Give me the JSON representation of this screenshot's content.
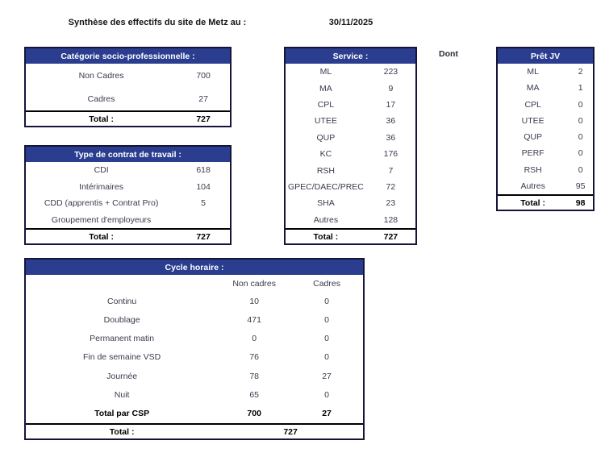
{
  "title": "Synthèse des effectifs du site de Metz au :",
  "date": "30/11/2025",
  "dont_label": "Dont",
  "colors": {
    "header_bg": "#2b3d8f",
    "header_text": "#ffffff",
    "border": "#15153a",
    "body_text": "#3b3b4f"
  },
  "tables": {
    "categorie": {
      "header": "Catégorie socio-professionnelle :",
      "rows": [
        {
          "label": "Non Cadres",
          "value": "700"
        },
        {
          "label": "Cadres",
          "value": "27"
        }
      ],
      "total_label": "Total :",
      "total_value": "727"
    },
    "contrat": {
      "header": "Type de contrat de travail :",
      "rows": [
        {
          "label": "CDI",
          "value": "618"
        },
        {
          "label": "Intérimaires",
          "value": "104"
        },
        {
          "label": "CDD (apprentis + Contrat Pro)",
          "value": "5"
        },
        {
          "label": "Groupement d'employeurs",
          "value": ""
        }
      ],
      "total_label": "Total :",
      "total_value": "727"
    },
    "service": {
      "header": "Service :",
      "rows": [
        {
          "label": "ML",
          "value": "223"
        },
        {
          "label": "MA",
          "value": "9"
        },
        {
          "label": "CPL",
          "value": "17"
        },
        {
          "label": "UTEE",
          "value": "36"
        },
        {
          "label": "QUP",
          "value": "36"
        },
        {
          "label": "KC",
          "value": "176"
        },
        {
          "label": "RSH",
          "value": "7"
        },
        {
          "label": "GPEC/DAEC/PREC",
          "value": "72"
        },
        {
          "label": "SHA",
          "value": "23"
        },
        {
          "label": "Autres",
          "value": "128"
        }
      ],
      "total_label": "Total :",
      "total_value": "727"
    },
    "pret_jv": {
      "header": "Prêt JV",
      "rows": [
        {
          "label": "ML",
          "value": "2"
        },
        {
          "label": "MA",
          "value": "1"
        },
        {
          "label": "CPL",
          "value": "0"
        },
        {
          "label": "UTEE",
          "value": "0"
        },
        {
          "label": "QUP",
          "value": "0"
        },
        {
          "label": "PERF",
          "value": "0"
        },
        {
          "label": "RSH",
          "value": "0"
        },
        {
          "label": "Autres",
          "value": "95"
        }
      ],
      "total_label": "Total :",
      "total_value": "98"
    },
    "cycle": {
      "header": "Cycle horaire :",
      "col_headers": {
        "non_cadres": "Non cadres",
        "cadres": "Cadres"
      },
      "rows": [
        {
          "label": "Continu",
          "non_cadres": "10",
          "cadres": "0"
        },
        {
          "label": "Doublage",
          "non_cadres": "471",
          "cadres": "0"
        },
        {
          "label": "Permanent matin",
          "non_cadres": "0",
          "cadres": "0"
        },
        {
          "label": "Fin de semaine VSD",
          "non_cadres": "76",
          "cadres": "0"
        },
        {
          "label": "Journée",
          "non_cadres": "78",
          "cadres": "27"
        },
        {
          "label": "Nuit",
          "non_cadres": "65",
          "cadres": "0"
        }
      ],
      "total_csp": {
        "label": "Total par CSP",
        "non_cadres": "700",
        "cadres": "27"
      },
      "total_label": "Total :",
      "total_value": "727"
    }
  }
}
